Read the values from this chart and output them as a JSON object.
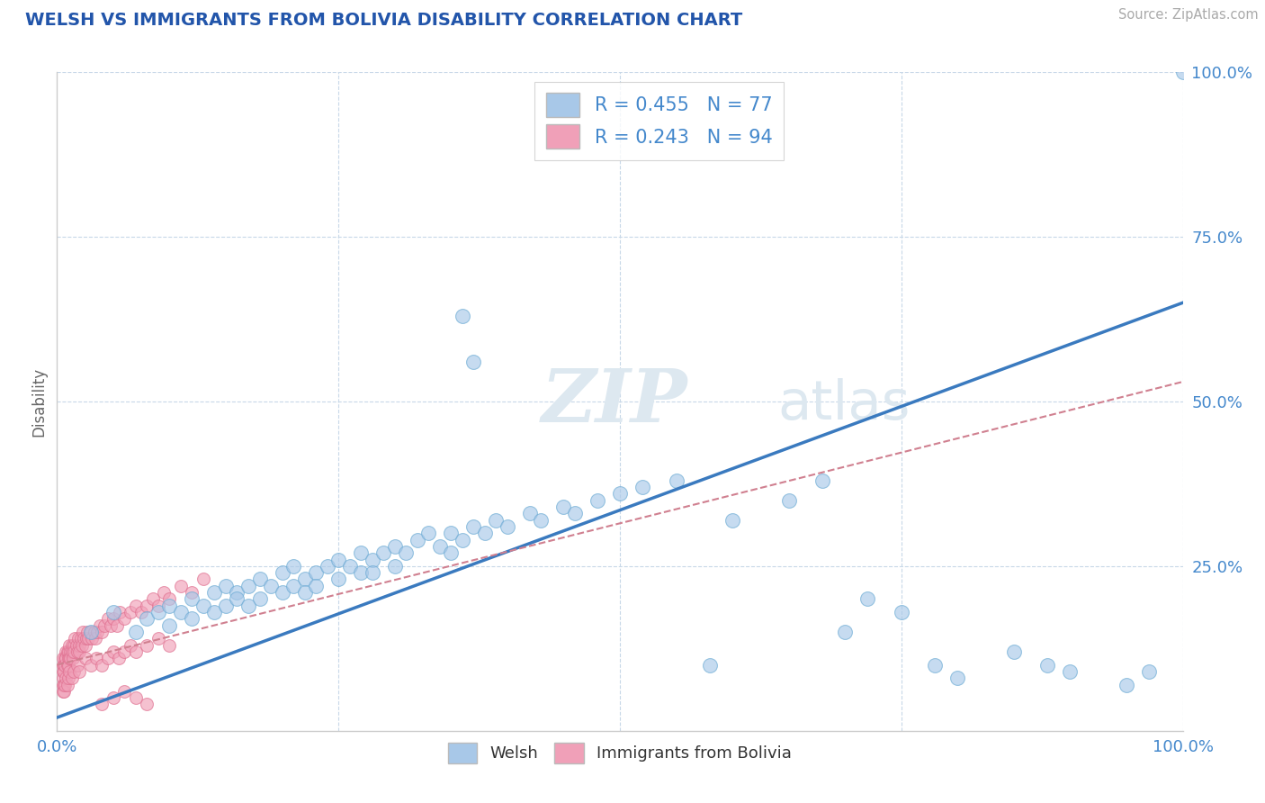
{
  "title": "WELSH VS IMMIGRANTS FROM BOLIVIA DISABILITY CORRELATION CHART",
  "source": "Source: ZipAtlas.com",
  "ylabel": "Disability",
  "xlim": [
    0,
    1
  ],
  "ylim": [
    0,
    1
  ],
  "welsh_R": 0.455,
  "welsh_N": 77,
  "bolivia_R": 0.243,
  "bolivia_N": 94,
  "welsh_color": "#a8c8e8",
  "welsh_edge_color": "#6aaad4",
  "bolivia_color": "#f0a0b8",
  "bolivia_edge_color": "#e07090",
  "welsh_line_color": "#3a7abf",
  "bolivia_line_color": "#d08090",
  "background_color": "#ffffff",
  "grid_color": "#c8d8e8",
  "title_color": "#2255aa",
  "axis_label_color": "#4488cc",
  "watermark_color": "#dde8f0",
  "welsh_line_x0": 0.0,
  "welsh_line_y0": 0.02,
  "welsh_line_x1": 1.0,
  "welsh_line_y1": 0.65,
  "bolivia_line_x0": 0.0,
  "bolivia_line_y0": 0.1,
  "bolivia_line_x1": 1.0,
  "bolivia_line_y1": 0.53,
  "welsh_scatter_x": [
    0.03,
    0.05,
    0.07,
    0.08,
    0.09,
    0.1,
    0.1,
    0.11,
    0.12,
    0.12,
    0.13,
    0.14,
    0.14,
    0.15,
    0.15,
    0.16,
    0.16,
    0.17,
    0.17,
    0.18,
    0.18,
    0.19,
    0.2,
    0.2,
    0.21,
    0.21,
    0.22,
    0.22,
    0.23,
    0.23,
    0.24,
    0.25,
    0.25,
    0.26,
    0.27,
    0.27,
    0.28,
    0.28,
    0.29,
    0.3,
    0.3,
    0.31,
    0.32,
    0.33,
    0.34,
    0.35,
    0.35,
    0.36,
    0.37,
    0.38,
    0.39,
    0.4,
    0.42,
    0.43,
    0.45,
    0.46,
    0.48,
    0.5,
    0.52,
    0.55,
    0.58,
    0.6,
    0.65,
    0.68,
    0.7,
    0.72,
    0.75,
    0.78,
    0.8,
    0.85,
    0.88,
    0.9,
    0.95,
    0.97,
    1.0,
    0.36,
    0.37
  ],
  "welsh_scatter_y": [
    0.15,
    0.18,
    0.15,
    0.17,
    0.18,
    0.19,
    0.16,
    0.18,
    0.2,
    0.17,
    0.19,
    0.21,
    0.18,
    0.22,
    0.19,
    0.21,
    0.2,
    0.22,
    0.19,
    0.23,
    0.2,
    0.22,
    0.24,
    0.21,
    0.25,
    0.22,
    0.23,
    0.21,
    0.24,
    0.22,
    0.25,
    0.26,
    0.23,
    0.25,
    0.27,
    0.24,
    0.26,
    0.24,
    0.27,
    0.28,
    0.25,
    0.27,
    0.29,
    0.3,
    0.28,
    0.3,
    0.27,
    0.29,
    0.31,
    0.3,
    0.32,
    0.31,
    0.33,
    0.32,
    0.34,
    0.33,
    0.35,
    0.36,
    0.37,
    0.38,
    0.1,
    0.32,
    0.35,
    0.38,
    0.15,
    0.2,
    0.18,
    0.1,
    0.08,
    0.12,
    0.1,
    0.09,
    0.07,
    0.09,
    1.0,
    0.63,
    0.56
  ],
  "bolivia_scatter_x": [
    0.005,
    0.005,
    0.005,
    0.005,
    0.006,
    0.006,
    0.007,
    0.007,
    0.008,
    0.008,
    0.009,
    0.009,
    0.01,
    0.01,
    0.01,
    0.011,
    0.011,
    0.012,
    0.012,
    0.013,
    0.013,
    0.014,
    0.015,
    0.015,
    0.016,
    0.017,
    0.018,
    0.019,
    0.02,
    0.02,
    0.021,
    0.022,
    0.023,
    0.024,
    0.025,
    0.026,
    0.027,
    0.028,
    0.03,
    0.031,
    0.033,
    0.034,
    0.036,
    0.038,
    0.04,
    0.042,
    0.045,
    0.048,
    0.05,
    0.053,
    0.056,
    0.06,
    0.065,
    0.07,
    0.075,
    0.08,
    0.085,
    0.09,
    0.095,
    0.1,
    0.11,
    0.12,
    0.13,
    0.005,
    0.005,
    0.006,
    0.006,
    0.007,
    0.008,
    0.009,
    0.01,
    0.011,
    0.013,
    0.015,
    0.018,
    0.02,
    0.025,
    0.03,
    0.035,
    0.04,
    0.045,
    0.05,
    0.055,
    0.06,
    0.065,
    0.07,
    0.08,
    0.09,
    0.1,
    0.05,
    0.06,
    0.07,
    0.08,
    0.04
  ],
  "bolivia_scatter_y": [
    0.1,
    0.09,
    0.08,
    0.11,
    0.1,
    0.09,
    0.11,
    0.1,
    0.12,
    0.11,
    0.1,
    0.12,
    0.11,
    0.1,
    0.12,
    0.11,
    0.13,
    0.12,
    0.11,
    0.13,
    0.12,
    0.11,
    0.13,
    0.12,
    0.14,
    0.13,
    0.12,
    0.14,
    0.13,
    0.12,
    0.14,
    0.13,
    0.15,
    0.14,
    0.13,
    0.14,
    0.15,
    0.14,
    0.15,
    0.14,
    0.15,
    0.14,
    0.15,
    0.16,
    0.15,
    0.16,
    0.17,
    0.16,
    0.17,
    0.16,
    0.18,
    0.17,
    0.18,
    0.19,
    0.18,
    0.19,
    0.2,
    0.19,
    0.21,
    0.2,
    0.22,
    0.21,
    0.23,
    0.07,
    0.06,
    0.07,
    0.06,
    0.07,
    0.08,
    0.07,
    0.08,
    0.09,
    0.08,
    0.09,
    0.1,
    0.09,
    0.11,
    0.1,
    0.11,
    0.1,
    0.11,
    0.12,
    0.11,
    0.12,
    0.13,
    0.12,
    0.13,
    0.14,
    0.13,
    0.05,
    0.06,
    0.05,
    0.04,
    0.04
  ]
}
